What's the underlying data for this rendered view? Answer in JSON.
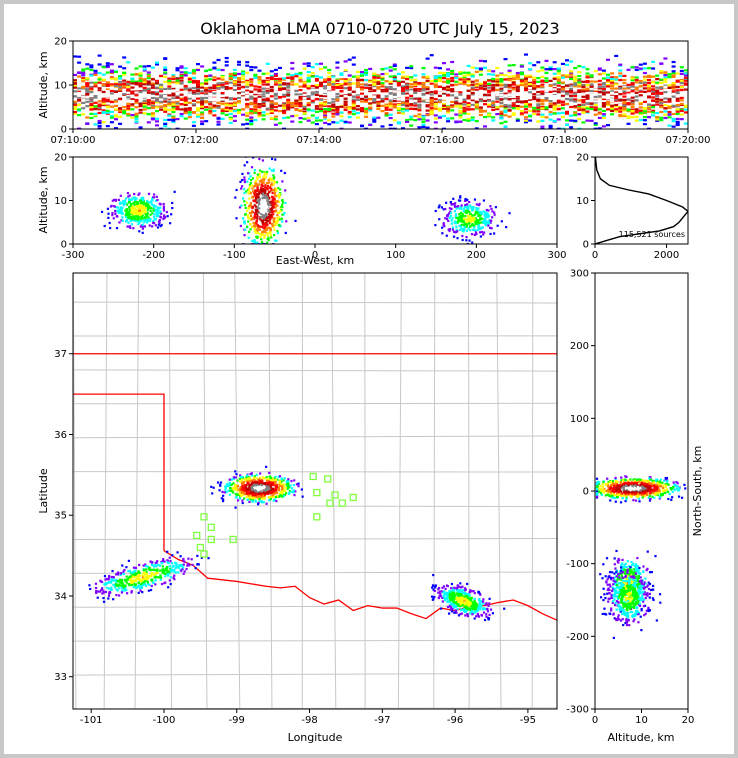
{
  "title": "Oklahoma LMA 0710-0720 UTC July 15, 2023",
  "colors": {
    "density": [
      "#0000ff",
      "#8000ff",
      "#00ffff",
      "#00ff00",
      "#ffff00",
      "#ff8000",
      "#ff0000",
      "#c00000",
      "#808080",
      "#ffffff"
    ],
    "border": "#ff0000",
    "county": "#c8c8c8",
    "station": "#80ff40"
  },
  "chart_data": [
    {
      "id": "time-height",
      "type": "heatmap",
      "ylabel": "Altitude, km",
      "xlim": [
        "07:10:00",
        "07:20:00"
      ],
      "ylim": [
        0,
        20
      ],
      "x_ticks": [
        "07:10:00",
        "07:12:00",
        "07:14:00",
        "07:16:00",
        "07:18:00",
        "07:20:00"
      ],
      "y_ticks": [
        0,
        10,
        20
      ],
      "description_peak_altitude_km": 8
    },
    {
      "id": "ew-height",
      "type": "heatmap",
      "xlabel": "East-West, km",
      "ylabel": "Altitude, km",
      "xlim": [
        -300,
        300
      ],
      "ylim": [
        0,
        20
      ],
      "x_ticks": [
        -300,
        -200,
        -100,
        0,
        100,
        200,
        300
      ],
      "y_ticks": [
        0,
        10,
        20
      ],
      "clusters": [
        {
          "x_km": -220,
          "alt_km": 8,
          "intensity": 0.5
        },
        {
          "x_km": -65,
          "alt_km": 9,
          "intensity": 1.0
        },
        {
          "x_km": 190,
          "alt_km": 6,
          "intensity": 0.45
        }
      ]
    },
    {
      "id": "altitude-histogram",
      "type": "line",
      "xlim": [
        0,
        2600
      ],
      "ylim": [
        0,
        20
      ],
      "x_ticks": [
        0,
        2000
      ],
      "y_ticks": [
        0,
        10,
        20
      ],
      "annotation": "115,521 sources",
      "points": [
        [
          0,
          0
        ],
        [
          400,
          1
        ],
        [
          700,
          1.7
        ],
        [
          1200,
          2.3
        ],
        [
          1800,
          3
        ],
        [
          2200,
          4
        ],
        [
          2350,
          5
        ],
        [
          2500,
          6.5
        ],
        [
          2600,
          7.5
        ],
        [
          2450,
          8.5
        ],
        [
          2000,
          10
        ],
        [
          1500,
          11.5
        ],
        [
          900,
          12.5
        ],
        [
          400,
          13.5
        ],
        [
          150,
          15
        ],
        [
          50,
          17
        ],
        [
          10,
          20
        ]
      ]
    },
    {
      "id": "plan-view",
      "type": "heatmap",
      "xlabel": "Longitude",
      "ylabel": "Latitude",
      "xlim": [
        -101.25,
        -94.6
      ],
      "ylim": [
        32.6,
        38.0
      ],
      "x_ticks": [
        -101,
        -100,
        -99,
        -98,
        -97,
        -96,
        -95
      ],
      "y_ticks": [
        33,
        34,
        35,
        36,
        37
      ],
      "clusters": [
        {
          "lon": -98.7,
          "lat": 35.35,
          "intensity": 1.0
        },
        {
          "lon": -100.3,
          "lat": 34.25,
          "intensity": 0.5
        },
        {
          "lon": -95.9,
          "lat": 33.95,
          "intensity": 0.5
        }
      ],
      "stations": [
        [
          -97.95,
          35.48
        ],
        [
          -97.75,
          35.45
        ],
        [
          -97.9,
          35.28
        ],
        [
          -97.65,
          35.25
        ],
        [
          -97.4,
          35.22
        ],
        [
          -97.72,
          35.15
        ],
        [
          -97.55,
          35.15
        ],
        [
          -97.9,
          34.98
        ],
        [
          -99.45,
          34.98
        ],
        [
          -99.35,
          34.85
        ],
        [
          -99.55,
          34.75
        ],
        [
          -99.35,
          34.7
        ],
        [
          -99.05,
          34.7
        ],
        [
          -99.5,
          34.6
        ],
        [
          -99.45,
          34.52
        ]
      ]
    },
    {
      "id": "ns-altitude",
      "type": "heatmap",
      "xlabel": "Altitude, km",
      "ylabel": "North-South, km",
      "xlim": [
        0,
        20
      ],
      "ylim": [
        -300,
        300
      ],
      "x_ticks": [
        0,
        10,
        20
      ],
      "y_ticks": [
        -300,
        -200,
        -100,
        0,
        100,
        200,
        300
      ],
      "clusters": [
        {
          "y_km": 5,
          "alt_km": 8,
          "intensity": 1.0
        },
        {
          "y_km": -125,
          "alt_km": 7,
          "intensity": 0.5
        },
        {
          "y_km": -145,
          "alt_km": 7,
          "intensity": 0.45
        }
      ]
    }
  ]
}
